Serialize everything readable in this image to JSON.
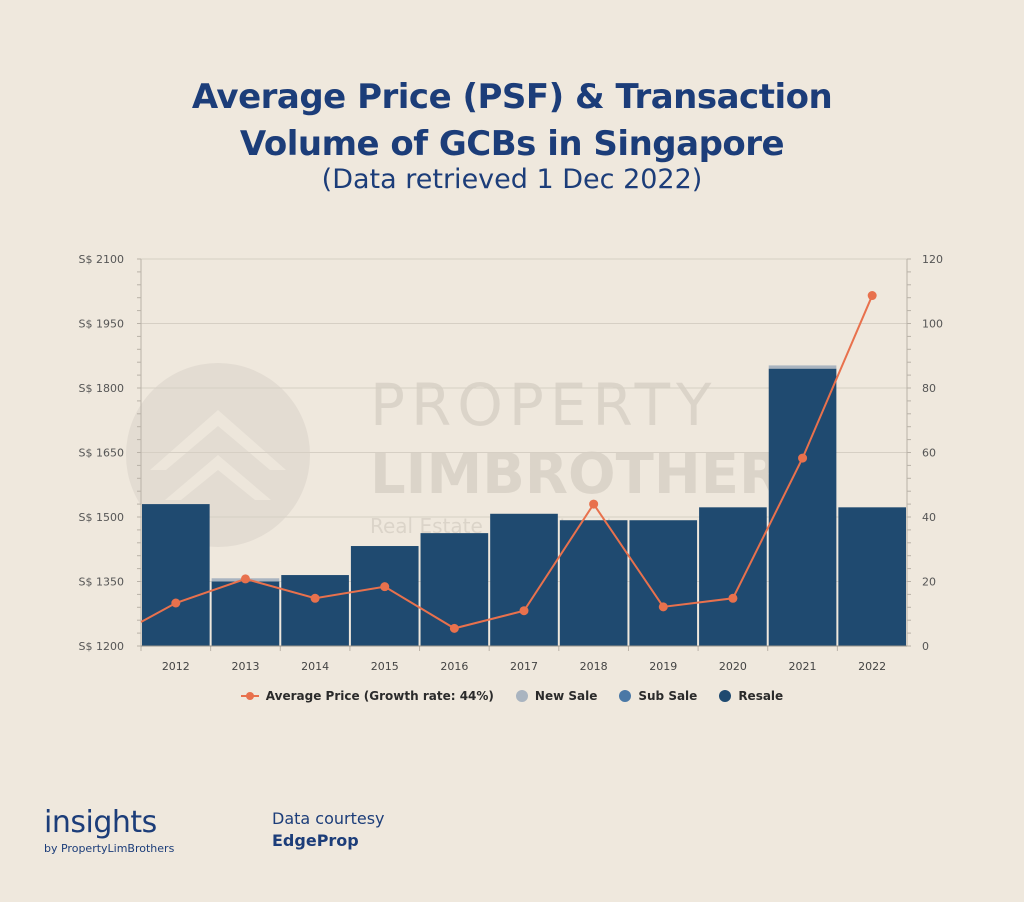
{
  "title_line1": "Average Price (PSF) & Transaction",
  "title_line2": "Volume of GCBs in Singapore",
  "subtitle": "(Data retrieved 1 Dec 2022)",
  "watermark": {
    "line1": "PROPERTY",
    "line2": "LIMBROTHERS",
    "line3": "Real Estate With Integrity"
  },
  "colors": {
    "background": "#efe8dd",
    "title": "#1c3d79",
    "line": "#e8714d",
    "resale": "#1f4a70",
    "sub_sale": "#4a78a6",
    "new_sale": "#a9b4c0"
  },
  "chart_data": {
    "type": "bar",
    "categories": [
      "2012",
      "2013",
      "2014",
      "2015",
      "2016",
      "2017",
      "2018",
      "2019",
      "2020",
      "2021",
      "2022"
    ],
    "series": [
      {
        "name": "New Sale",
        "type": "bar",
        "axis": "right",
        "values": [
          0,
          1,
          0,
          0,
          0,
          0,
          0,
          0,
          0,
          1,
          0
        ]
      },
      {
        "name": "Sub Sale",
        "type": "bar",
        "axis": "right",
        "values": [
          0,
          0,
          0,
          0,
          0,
          0,
          0,
          0,
          0,
          0,
          0
        ]
      },
      {
        "name": "Resale",
        "type": "bar",
        "axis": "right",
        "values": [
          44,
          20,
          22,
          31,
          35,
          41,
          39,
          39,
          43,
          86,
          43
        ]
      },
      {
        "name": "Average Price (Growth rate: 44%)",
        "type": "line",
        "axis": "left",
        "values": [
          1300,
          1356,
          1311,
          1338,
          1241,
          1282,
          1530,
          1291,
          1311,
          1637,
          2015
        ]
      }
    ],
    "left_axis": {
      "ticks": [
        "S$ 1200",
        "S$ 1350",
        "S$ 1500",
        "S$ 1650",
        "S$ 1800",
        "S$ 1950",
        "S$ 2100"
      ],
      "range": [
        1200,
        2100
      ]
    },
    "right_axis": {
      "ticks": [
        "0",
        "20",
        "40",
        "60",
        "80",
        "100",
        "120"
      ],
      "range": [
        0,
        120
      ]
    },
    "grid": true,
    "legend": "bottom"
  },
  "footer": {
    "brand": "insights",
    "brand_sub": "by PropertyLimBrothers",
    "credit_label": "Data courtesy",
    "credit_name": "EdgeProp"
  }
}
